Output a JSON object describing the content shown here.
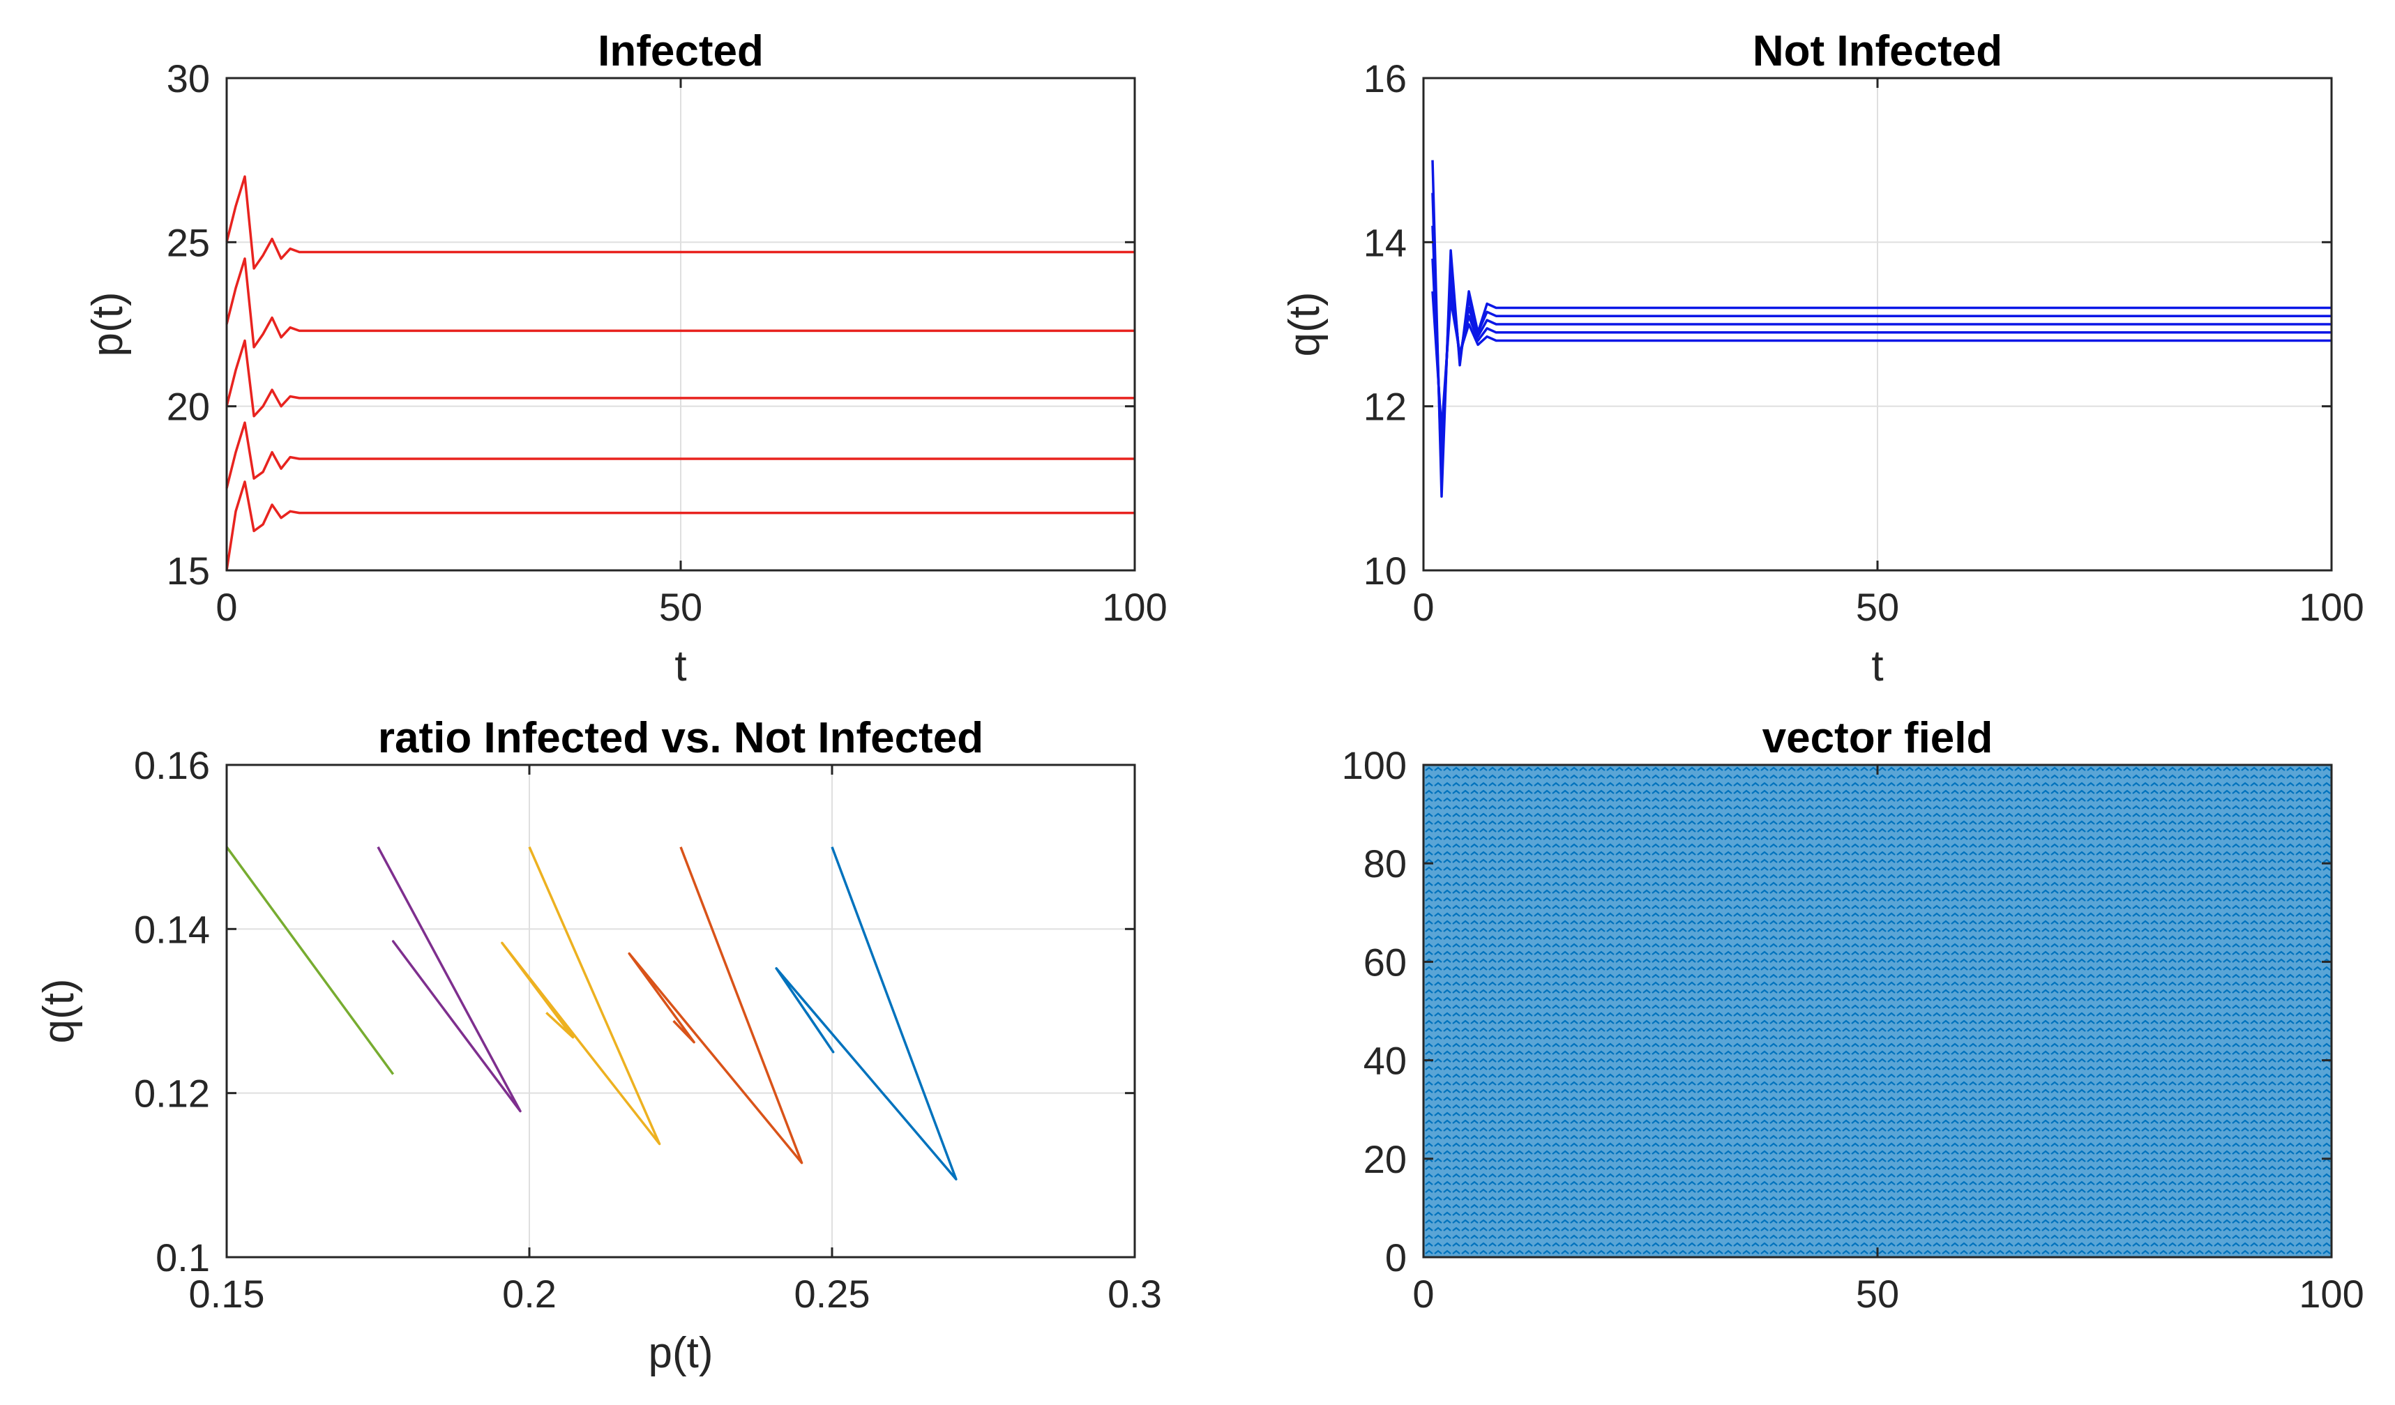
{
  "chart_data": [
    {
      "type": "line",
      "title": "Infected",
      "xlabel": "t",
      "ylabel": "p(t)",
      "xlim": [
        0,
        100
      ],
      "ylim": [
        15,
        30
      ],
      "xticks": [
        "0",
        "50",
        "100"
      ],
      "yticks": [
        "15",
        "20",
        "25",
        "30"
      ],
      "grid": true,
      "color": "#e8231f",
      "series": [
        {
          "x": [
            0,
            1,
            2,
            3,
            4,
            5,
            6,
            7,
            8,
            100
          ],
          "values": [
            25.0,
            26.1,
            27.0,
            24.2,
            24.6,
            25.1,
            24.5,
            24.8,
            24.7,
            24.7
          ]
        },
        {
          "x": [
            0,
            1,
            2,
            3,
            4,
            5,
            6,
            7,
            8,
            100
          ],
          "values": [
            22.5,
            23.6,
            24.5,
            21.8,
            22.2,
            22.7,
            22.1,
            22.4,
            22.3,
            22.3
          ]
        },
        {
          "x": [
            0,
            1,
            2,
            3,
            4,
            5,
            6,
            7,
            8,
            100
          ],
          "values": [
            20.0,
            21.1,
            22.0,
            19.7,
            20.0,
            20.5,
            20.0,
            20.3,
            20.25,
            20.25
          ]
        },
        {
          "x": [
            0,
            1,
            2,
            3,
            4,
            5,
            6,
            7,
            8,
            100
          ],
          "values": [
            17.5,
            18.6,
            19.5,
            17.8,
            18.0,
            18.6,
            18.1,
            18.45,
            18.4,
            18.4
          ]
        },
        {
          "x": [
            0,
            1,
            2,
            3,
            4,
            5,
            6,
            7,
            8,
            100
          ],
          "values": [
            15.0,
            16.8,
            17.7,
            16.2,
            16.4,
            17.0,
            16.6,
            16.8,
            16.75,
            16.75
          ]
        }
      ]
    },
    {
      "type": "line",
      "title": "Not Infected",
      "xlabel": "t",
      "ylabel": "q(t)",
      "xlim": [
        0,
        100
      ],
      "ylim": [
        10,
        16
      ],
      "xticks": [
        "0",
        "50",
        "100"
      ],
      "yticks": [
        "10",
        "12",
        "14",
        "16"
      ],
      "grid": true,
      "color": "#0b17e6",
      "series": [
        {
          "x": [
            1,
            2,
            3,
            4,
            5,
            6,
            7,
            8,
            100
          ],
          "values": [
            15.0,
            10.9,
            13.9,
            12.5,
            13.4,
            12.9,
            13.25,
            13.2,
            13.2
          ]
        },
        {
          "x": [
            1,
            2,
            3,
            4,
            5,
            6,
            7,
            8,
            100
          ],
          "values": [
            14.6,
            11.1,
            13.75,
            12.55,
            13.3,
            12.9,
            13.15,
            13.1,
            13.1
          ]
        },
        {
          "x": [
            1,
            2,
            3,
            4,
            5,
            6,
            7,
            8,
            100
          ],
          "values": [
            14.2,
            11.3,
            13.6,
            12.6,
            13.2,
            12.85,
            13.05,
            13.0,
            13.0
          ]
        },
        {
          "x": [
            1,
            2,
            3,
            4,
            5,
            6,
            7,
            8,
            100
          ],
          "values": [
            13.8,
            11.5,
            13.45,
            12.6,
            13.1,
            12.8,
            12.95,
            12.9,
            12.9
          ]
        },
        {
          "x": [
            1,
            2,
            3,
            4,
            5,
            6,
            7,
            8,
            100
          ],
          "values": [
            13.4,
            11.7,
            13.3,
            12.65,
            13.0,
            12.75,
            12.85,
            12.8,
            12.8
          ]
        }
      ]
    },
    {
      "type": "line",
      "title": "ratio Infected vs. Not Infected",
      "xlabel": "p(t)",
      "ylabel": "q(t)",
      "xlim": [
        0.15,
        0.3
      ],
      "ylim": [
        0.1,
        0.16
      ],
      "xticks": [
        "0.15",
        "0.2",
        "0.25",
        "0.3"
      ],
      "yticks": [
        "0.1",
        "0.12",
        "0.14",
        "0.16"
      ],
      "grid": true,
      "series": [
        {
          "color": "#77ac30",
          "points": [
            [
              0.15,
              0.15
            ],
            [
              0.1775,
              0.1223
            ]
          ]
        },
        {
          "color": "#7e2f8e",
          "points": [
            [
              0.175,
              0.15
            ],
            [
              0.1985,
              0.1178
            ],
            [
              0.1775,
              0.1385
            ],
            [
              0.1985,
              0.1178
            ]
          ]
        },
        {
          "color": "#edb120",
          "points": [
            [
              0.2,
              0.15
            ],
            [
              0.2215,
              0.1138
            ],
            [
              0.1955,
              0.1383
            ],
            [
              0.2072,
              0.1268
            ],
            [
              0.2028,
              0.1298
            ]
          ]
        },
        {
          "color": "#d95319",
          "points": [
            [
              0.225,
              0.15
            ],
            [
              0.245,
              0.1115
            ],
            [
              0.2165,
              0.137
            ],
            [
              0.2272,
              0.1262
            ],
            [
              0.2238,
              0.1288
            ]
          ]
        },
        {
          "color": "#0072bd",
          "points": [
            [
              0.25,
              0.15
            ],
            [
              0.2705,
              0.1095
            ],
            [
              0.2408,
              0.1352
            ],
            [
              0.2502,
              0.125
            ],
            [
              0.2458,
              0.1298
            ]
          ]
        }
      ]
    },
    {
      "type": "quiver",
      "title": "vector field",
      "xlabel": "",
      "ylabel": "",
      "xlim": [
        0,
        100
      ],
      "ylim": [
        0,
        100
      ],
      "xticks": [
        "0",
        "50",
        "100"
      ],
      "yticks": [
        "0",
        "20",
        "40",
        "60",
        "80",
        "100"
      ],
      "grid": false,
      "color": "#0072bd",
      "field": "dense arrow field covering the whole domain"
    }
  ]
}
